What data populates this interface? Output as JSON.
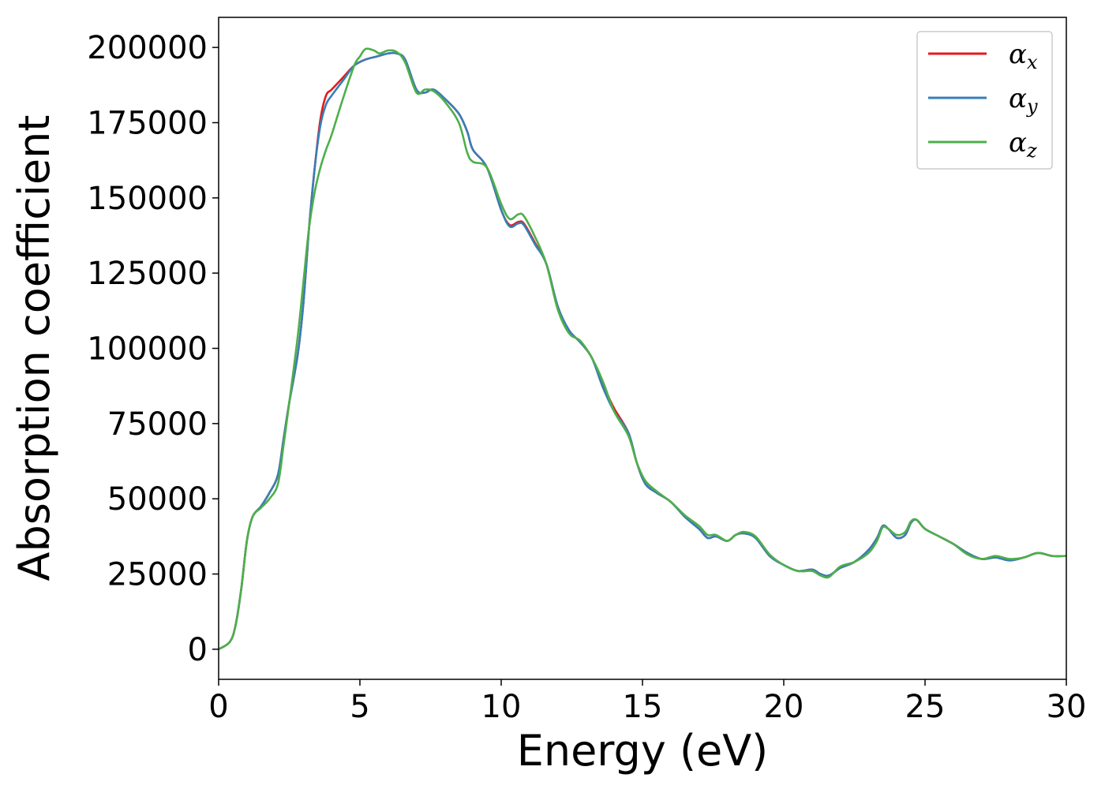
{
  "chart_data": {
    "type": "line",
    "title": "",
    "xlabel": "Energy (eV)",
    "ylabel": "Absorption coefficient",
    "xlim": [
      0,
      30
    ],
    "ylim": [
      -10000,
      210000
    ],
    "grid": false,
    "legend_position": "top-right",
    "x_ticks": [
      0,
      5,
      10,
      15,
      20,
      25,
      30
    ],
    "x_tick_labels": [
      "0",
      "5",
      "10",
      "15",
      "20",
      "25",
      "30"
    ],
    "y_ticks": [
      0,
      25000,
      50000,
      75000,
      100000,
      125000,
      150000,
      175000,
      200000
    ],
    "y_tick_labels": [
      "0",
      "25000",
      "50000",
      "75000",
      "100000",
      "125000",
      "150000",
      "175000",
      "200000"
    ],
    "series": [
      {
        "name": "αx",
        "symbol": "α",
        "subscript": "x",
        "color": "#e41a1c",
        "points": [
          [
            0,
            0
          ],
          [
            0.4,
            2500
          ],
          [
            0.6,
            8000
          ],
          [
            0.8,
            20000
          ],
          [
            1.0,
            36000
          ],
          [
            1.2,
            44000
          ],
          [
            1.5,
            47500
          ],
          [
            1.8,
            52000
          ],
          [
            2.1,
            58000
          ],
          [
            2.3,
            70000
          ],
          [
            2.5,
            82000
          ],
          [
            2.8,
            98000
          ],
          [
            3.0,
            115000
          ],
          [
            3.2,
            140000
          ],
          [
            3.4,
            160000
          ],
          [
            3.6,
            176000
          ],
          [
            3.8,
            184000
          ],
          [
            4.0,
            186000
          ],
          [
            4.4,
            190000
          ],
          [
            4.8,
            194000
          ],
          [
            5.2,
            196000
          ],
          [
            5.6,
            197000
          ],
          [
            6.0,
            198000
          ],
          [
            6.3,
            198000
          ],
          [
            6.6,
            196000
          ],
          [
            7.0,
            186000
          ],
          [
            7.3,
            185000
          ],
          [
            7.6,
            186000
          ],
          [
            8.0,
            183000
          ],
          [
            8.5,
            178000
          ],
          [
            8.8,
            172000
          ],
          [
            9.0,
            166000
          ],
          [
            9.5,
            160000
          ],
          [
            10.0,
            146000
          ],
          [
            10.3,
            141000
          ],
          [
            10.6,
            142000
          ],
          [
            10.8,
            141500
          ],
          [
            11.2,
            135000
          ],
          [
            11.6,
            128000
          ],
          [
            12.0,
            114000
          ],
          [
            12.4,
            106000
          ],
          [
            12.8,
            102000
          ],
          [
            13.2,
            97000
          ],
          [
            13.6,
            88000
          ],
          [
            14.0,
            80000
          ],
          [
            14.5,
            72000
          ],
          [
            14.8,
            62000
          ],
          [
            15.1,
            55000
          ],
          [
            15.5,
            52000
          ],
          [
            16.0,
            49000
          ],
          [
            16.5,
            44000
          ],
          [
            17.0,
            40000
          ],
          [
            17.3,
            37000
          ],
          [
            17.6,
            37500
          ],
          [
            18.0,
            36000
          ],
          [
            18.3,
            38000
          ],
          [
            18.6,
            38500
          ],
          [
            19.0,
            37000
          ],
          [
            19.5,
            31000
          ],
          [
            20.0,
            28000
          ],
          [
            20.5,
            26000
          ],
          [
            21.0,
            26500
          ],
          [
            21.3,
            25000
          ],
          [
            21.6,
            24500
          ],
          [
            22.0,
            27000
          ],
          [
            22.5,
            29000
          ],
          [
            23.0,
            33000
          ],
          [
            23.3,
            37000
          ],
          [
            23.5,
            41000
          ],
          [
            23.7,
            40000
          ],
          [
            24.0,
            37000
          ],
          [
            24.3,
            38000
          ],
          [
            24.5,
            42000
          ],
          [
            24.7,
            43000
          ],
          [
            25.0,
            40000
          ],
          [
            25.5,
            37500
          ],
          [
            26.0,
            35000
          ],
          [
            26.5,
            32000
          ],
          [
            27.0,
            30000
          ],
          [
            27.5,
            30500
          ],
          [
            28.0,
            29500
          ],
          [
            28.5,
            30500
          ],
          [
            29.0,
            32000
          ],
          [
            29.5,
            31000
          ],
          [
            30.0,
            31000
          ]
        ]
      },
      {
        "name": "αy",
        "symbol": "α",
        "subscript": "y",
        "color": "#377eb8",
        "points": [
          [
            0,
            0
          ],
          [
            0.4,
            2500
          ],
          [
            0.6,
            8000
          ],
          [
            0.8,
            20000
          ],
          [
            1.0,
            36000
          ],
          [
            1.2,
            44000
          ],
          [
            1.5,
            47500
          ],
          [
            1.8,
            52000
          ],
          [
            2.1,
            58000
          ],
          [
            2.3,
            70000
          ],
          [
            2.5,
            82000
          ],
          [
            2.8,
            98000
          ],
          [
            3.0,
            115000
          ],
          [
            3.2,
            140000
          ],
          [
            3.4,
            160000
          ],
          [
            3.6,
            174000
          ],
          [
            3.8,
            181000
          ],
          [
            4.0,
            184000
          ],
          [
            4.4,
            189000
          ],
          [
            4.8,
            194000
          ],
          [
            5.2,
            196000
          ],
          [
            5.6,
            197000
          ],
          [
            6.0,
            198000
          ],
          [
            6.3,
            198000
          ],
          [
            6.6,
            196000
          ],
          [
            7.0,
            186000
          ],
          [
            7.3,
            185000
          ],
          [
            7.6,
            186000
          ],
          [
            8.0,
            183000
          ],
          [
            8.5,
            178000
          ],
          [
            8.8,
            172000
          ],
          [
            9.0,
            166000
          ],
          [
            9.5,
            160000
          ],
          [
            10.0,
            146000
          ],
          [
            10.3,
            140500
          ],
          [
            10.6,
            141500
          ],
          [
            10.8,
            141000
          ],
          [
            11.2,
            134500
          ],
          [
            11.6,
            128000
          ],
          [
            12.0,
            114000
          ],
          [
            12.4,
            106000
          ],
          [
            12.8,
            102000
          ],
          [
            13.2,
            97000
          ],
          [
            13.6,
            87000
          ],
          [
            14.0,
            79000
          ],
          [
            14.5,
            72000
          ],
          [
            14.8,
            62000
          ],
          [
            15.1,
            55000
          ],
          [
            15.5,
            52000
          ],
          [
            16.0,
            49000
          ],
          [
            16.5,
            44000
          ],
          [
            17.0,
            40000
          ],
          [
            17.3,
            37000
          ],
          [
            17.6,
            37500
          ],
          [
            18.0,
            36000
          ],
          [
            18.3,
            38000
          ],
          [
            18.6,
            38500
          ],
          [
            19.0,
            37000
          ],
          [
            19.5,
            31000
          ],
          [
            20.0,
            28000
          ],
          [
            20.5,
            26000
          ],
          [
            21.0,
            26500
          ],
          [
            21.3,
            25000
          ],
          [
            21.6,
            24500
          ],
          [
            22.0,
            27000
          ],
          [
            22.5,
            29000
          ],
          [
            23.0,
            33000
          ],
          [
            23.3,
            37000
          ],
          [
            23.5,
            41000
          ],
          [
            23.7,
            40000
          ],
          [
            24.0,
            37000
          ],
          [
            24.3,
            38000
          ],
          [
            24.5,
            42000
          ],
          [
            24.7,
            43000
          ],
          [
            25.0,
            40000
          ],
          [
            25.5,
            37500
          ],
          [
            26.0,
            35000
          ],
          [
            26.5,
            32000
          ],
          [
            27.0,
            30000
          ],
          [
            27.5,
            30500
          ],
          [
            28.0,
            29500
          ],
          [
            28.5,
            30500
          ],
          [
            29.0,
            32000
          ],
          [
            29.5,
            31000
          ],
          [
            30.0,
            31000
          ]
        ]
      },
      {
        "name": "αz",
        "symbol": "α",
        "subscript": "z",
        "color": "#4daf4a",
        "points": [
          [
            0,
            0
          ],
          [
            0.4,
            2500
          ],
          [
            0.6,
            8000
          ],
          [
            0.8,
            20000
          ],
          [
            1.0,
            36000
          ],
          [
            1.2,
            44000
          ],
          [
            1.5,
            47000
          ],
          [
            1.8,
            50000
          ],
          [
            2.1,
            55000
          ],
          [
            2.3,
            68000
          ],
          [
            2.5,
            82000
          ],
          [
            2.8,
            104000
          ],
          [
            3.0,
            122000
          ],
          [
            3.2,
            140000
          ],
          [
            3.4,
            152000
          ],
          [
            3.6,
            160000
          ],
          [
            3.8,
            166000
          ],
          [
            4.0,
            171000
          ],
          [
            4.4,
            183000
          ],
          [
            4.8,
            194000
          ],
          [
            5.0,
            197000
          ],
          [
            5.2,
            199500
          ],
          [
            5.5,
            199000
          ],
          [
            5.7,
            198000
          ],
          [
            6.0,
            199000
          ],
          [
            6.3,
            198500
          ],
          [
            6.6,
            195000
          ],
          [
            7.0,
            185000
          ],
          [
            7.3,
            186000
          ],
          [
            7.6,
            185500
          ],
          [
            8.0,
            182000
          ],
          [
            8.5,
            175000
          ],
          [
            8.8,
            165000
          ],
          [
            9.0,
            162000
          ],
          [
            9.5,
            160000
          ],
          [
            10.0,
            148000
          ],
          [
            10.3,
            143000
          ],
          [
            10.6,
            144500
          ],
          [
            10.8,
            144000
          ],
          [
            11.2,
            137000
          ],
          [
            11.6,
            128000
          ],
          [
            12.0,
            113000
          ],
          [
            12.4,
            105000
          ],
          [
            12.8,
            102500
          ],
          [
            13.2,
            97000
          ],
          [
            13.6,
            89000
          ],
          [
            14.0,
            79000
          ],
          [
            14.5,
            71000
          ],
          [
            14.8,
            62000
          ],
          [
            15.1,
            56000
          ],
          [
            15.5,
            52500
          ],
          [
            16.0,
            49000
          ],
          [
            16.5,
            44500
          ],
          [
            17.0,
            41000
          ],
          [
            17.3,
            38000
          ],
          [
            17.6,
            38000
          ],
          [
            18.0,
            36000
          ],
          [
            18.3,
            38000
          ],
          [
            18.6,
            39000
          ],
          [
            19.0,
            37500
          ],
          [
            19.5,
            31500
          ],
          [
            20.0,
            28000
          ],
          [
            20.5,
            26000
          ],
          [
            21.0,
            26000
          ],
          [
            21.3,
            24500
          ],
          [
            21.6,
            24000
          ],
          [
            22.0,
            27500
          ],
          [
            22.5,
            29000
          ],
          [
            23.0,
            32000
          ],
          [
            23.3,
            36000
          ],
          [
            23.5,
            40500
          ],
          [
            23.7,
            40000
          ],
          [
            24.0,
            38000
          ],
          [
            24.3,
            39000
          ],
          [
            24.5,
            42500
          ],
          [
            24.7,
            43000
          ],
          [
            25.0,
            40000
          ],
          [
            25.5,
            37500
          ],
          [
            26.0,
            35000
          ],
          [
            26.5,
            31500
          ],
          [
            27.0,
            30000
          ],
          [
            27.5,
            31000
          ],
          [
            28.0,
            30000
          ],
          [
            28.5,
            30500
          ],
          [
            29.0,
            32000
          ],
          [
            29.5,
            31000
          ],
          [
            30.0,
            31000
          ]
        ]
      }
    ]
  }
}
